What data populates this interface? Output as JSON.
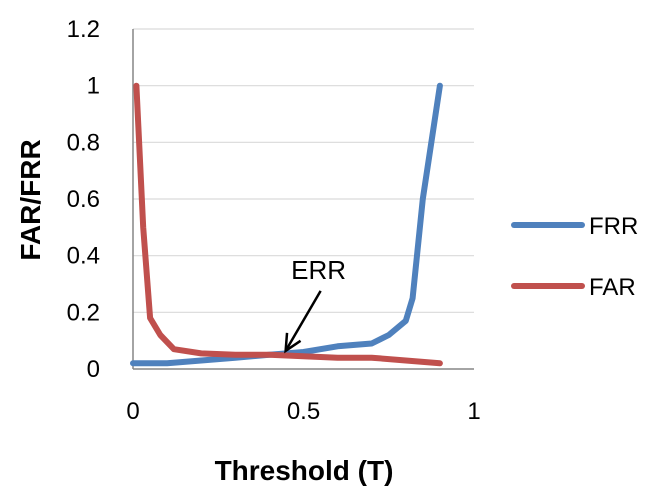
{
  "chart_data": {
    "type": "line",
    "xlabel": "Threshold (T)",
    "ylabel": "FAR/FRR",
    "xlim": [
      0,
      1
    ],
    "ylim": [
      0,
      1.2
    ],
    "x_ticks": [
      "0",
      "0.5",
      "1"
    ],
    "y_ticks": [
      "0",
      "0.2",
      "0.4",
      "0.6",
      "0.8",
      "1",
      "1.2"
    ],
    "grid": "horizontal",
    "legend_position": "right",
    "series": [
      {
        "name": "FRR",
        "color": "#4F81BD",
        "points": [
          [
            0.0,
            0.02
          ],
          [
            0.1,
            0.02
          ],
          [
            0.2,
            0.03
          ],
          [
            0.3,
            0.04
          ],
          [
            0.4,
            0.05
          ],
          [
            0.5,
            0.06
          ],
          [
            0.6,
            0.08
          ],
          [
            0.7,
            0.09
          ],
          [
            0.75,
            0.12
          ],
          [
            0.8,
            0.17
          ],
          [
            0.82,
            0.25
          ],
          [
            0.85,
            0.6
          ],
          [
            0.9,
            1.0
          ]
        ]
      },
      {
        "name": "FAR",
        "color": "#C0504D",
        "points": [
          [
            0.01,
            1.0
          ],
          [
            0.03,
            0.5
          ],
          [
            0.05,
            0.18
          ],
          [
            0.08,
            0.12
          ],
          [
            0.12,
            0.07
          ],
          [
            0.2,
            0.055
          ],
          [
            0.3,
            0.05
          ],
          [
            0.4,
            0.05
          ],
          [
            0.5,
            0.045
          ],
          [
            0.6,
            0.04
          ],
          [
            0.7,
            0.04
          ],
          [
            0.8,
            0.03
          ],
          [
            0.9,
            0.02
          ]
        ]
      }
    ],
    "annotations": [
      {
        "text": "ERR",
        "x": 0.43,
        "y": 0.05
      }
    ]
  }
}
